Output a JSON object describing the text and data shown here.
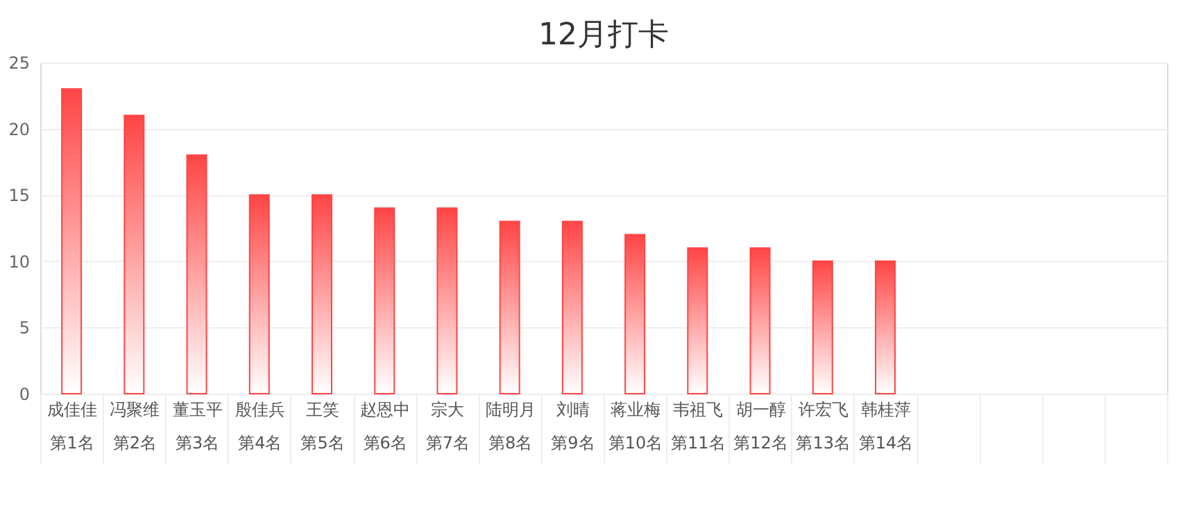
{
  "chart_data": {
    "type": "bar",
    "title": "12月打卡",
    "categories": [
      "成佳佳第1名",
      "冯聚维第2名",
      "董玉平第3名",
      "殷佳兵第4名",
      "王笑第5名",
      "赵恩中第6名",
      "宗大第7名",
      "陆明月第8名",
      "刘晴第9名",
      "蒋业梅第10名",
      "韦祖飞第11名",
      "胡一醇第12名",
      "许宏飞第13名",
      "韩桂萍第14名",
      null,
      null,
      null,
      null
    ],
    "values": [
      23,
      21,
      18,
      15,
      15,
      14,
      14,
      13,
      13,
      12,
      11,
      11,
      10,
      10,
      null,
      null,
      null,
      null
    ],
    "color": "#ff4545",
    "ylim": [
      0,
      25
    ],
    "yticks": [
      0,
      5,
      10,
      15,
      20,
      25
    ],
    "grid": "y"
  }
}
